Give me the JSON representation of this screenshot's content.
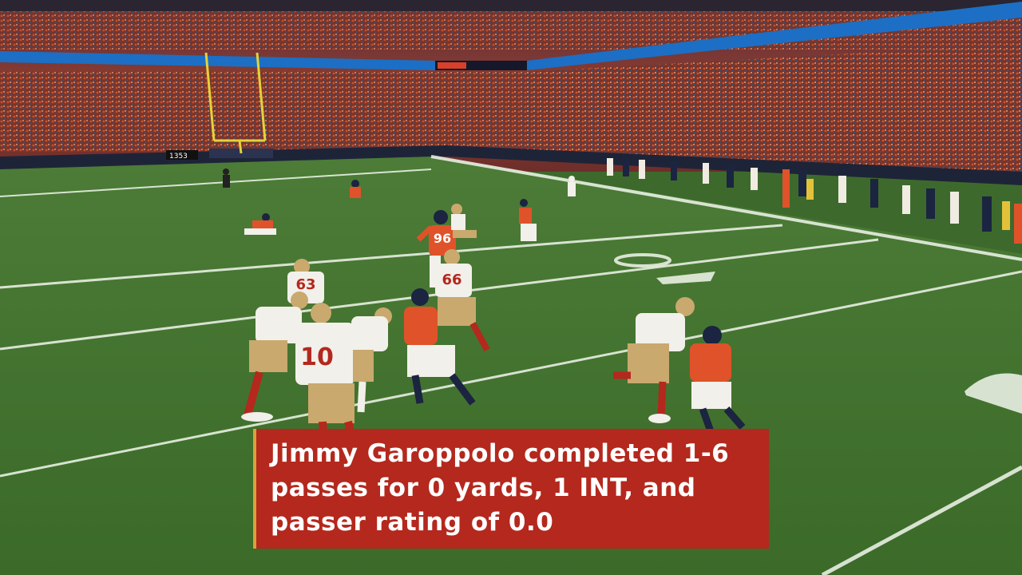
{
  "scene": {
    "description_colors": {
      "field": "#3f6d2e",
      "field_light": "#4a7a36",
      "stands": "#8a3a2c",
      "ribbon": "#1f6fbf",
      "broncos_orange": "#e0522a",
      "niners_white": "#f2f0ea",
      "niners_gold": "#c9a96e",
      "broncos_navy": "#1b2440"
    },
    "jersey_numbers": [
      "96",
      "66",
      "63",
      "10"
    ],
    "stadium_board_text": "1353"
  },
  "caption": {
    "lines": [
      "Jimmy Garoppolo completed 1-6",
      "passes for 0 yards, 1 INT, and",
      "passer rating of 0.0"
    ],
    "background": "#b4281d",
    "accent": "#d8a23a"
  }
}
